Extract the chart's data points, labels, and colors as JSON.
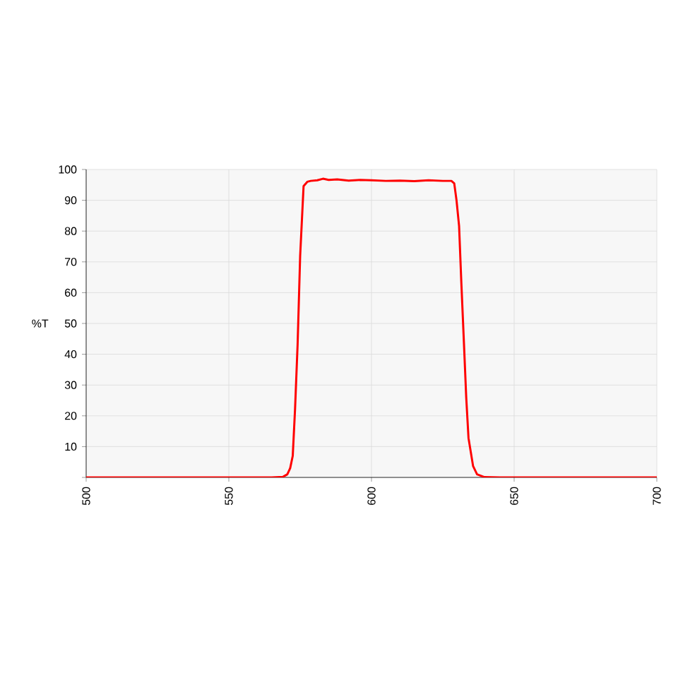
{
  "chart_data": {
    "type": "line",
    "ylabel": "%T",
    "x": [
      500,
      550,
      565,
      569,
      570.5,
      571.5,
      572.4,
      573.2,
      574.1,
      575,
      576.2,
      577.5,
      578.7,
      581,
      583,
      585,
      588,
      592,
      596,
      600,
      605,
      610,
      615,
      620,
      625,
      628,
      629,
      629.8,
      630.7,
      631.5,
      632.4,
      633.2,
      634,
      635.6,
      637,
      639.6,
      645,
      700
    ],
    "series": [
      {
        "color": "#ff0000",
        "values": [
          0,
          0,
          0,
          0.2,
          1,
          3,
          7,
          22,
          43,
          72,
          94.6,
          96,
          96.3,
          96.5,
          97,
          96.6,
          96.8,
          96.4,
          96.6,
          96.5,
          96.3,
          96.4,
          96.2,
          96.5,
          96.3,
          96.3,
          95.5,
          90,
          81.6,
          63,
          43.6,
          26,
          12.8,
          3.7,
          1,
          0.1,
          0,
          0
        ]
      }
    ],
    "xlim": [
      500,
      700
    ],
    "ylim": [
      0,
      100
    ],
    "xticks": [
      500,
      550,
      600,
      650,
      700
    ],
    "yticks": [
      {
        "value": 0,
        "label": null
      },
      10,
      20,
      30,
      40,
      50,
      60,
      70,
      80,
      90,
      100
    ],
    "grid": true,
    "line_style": "solid",
    "marker": "none"
  }
}
